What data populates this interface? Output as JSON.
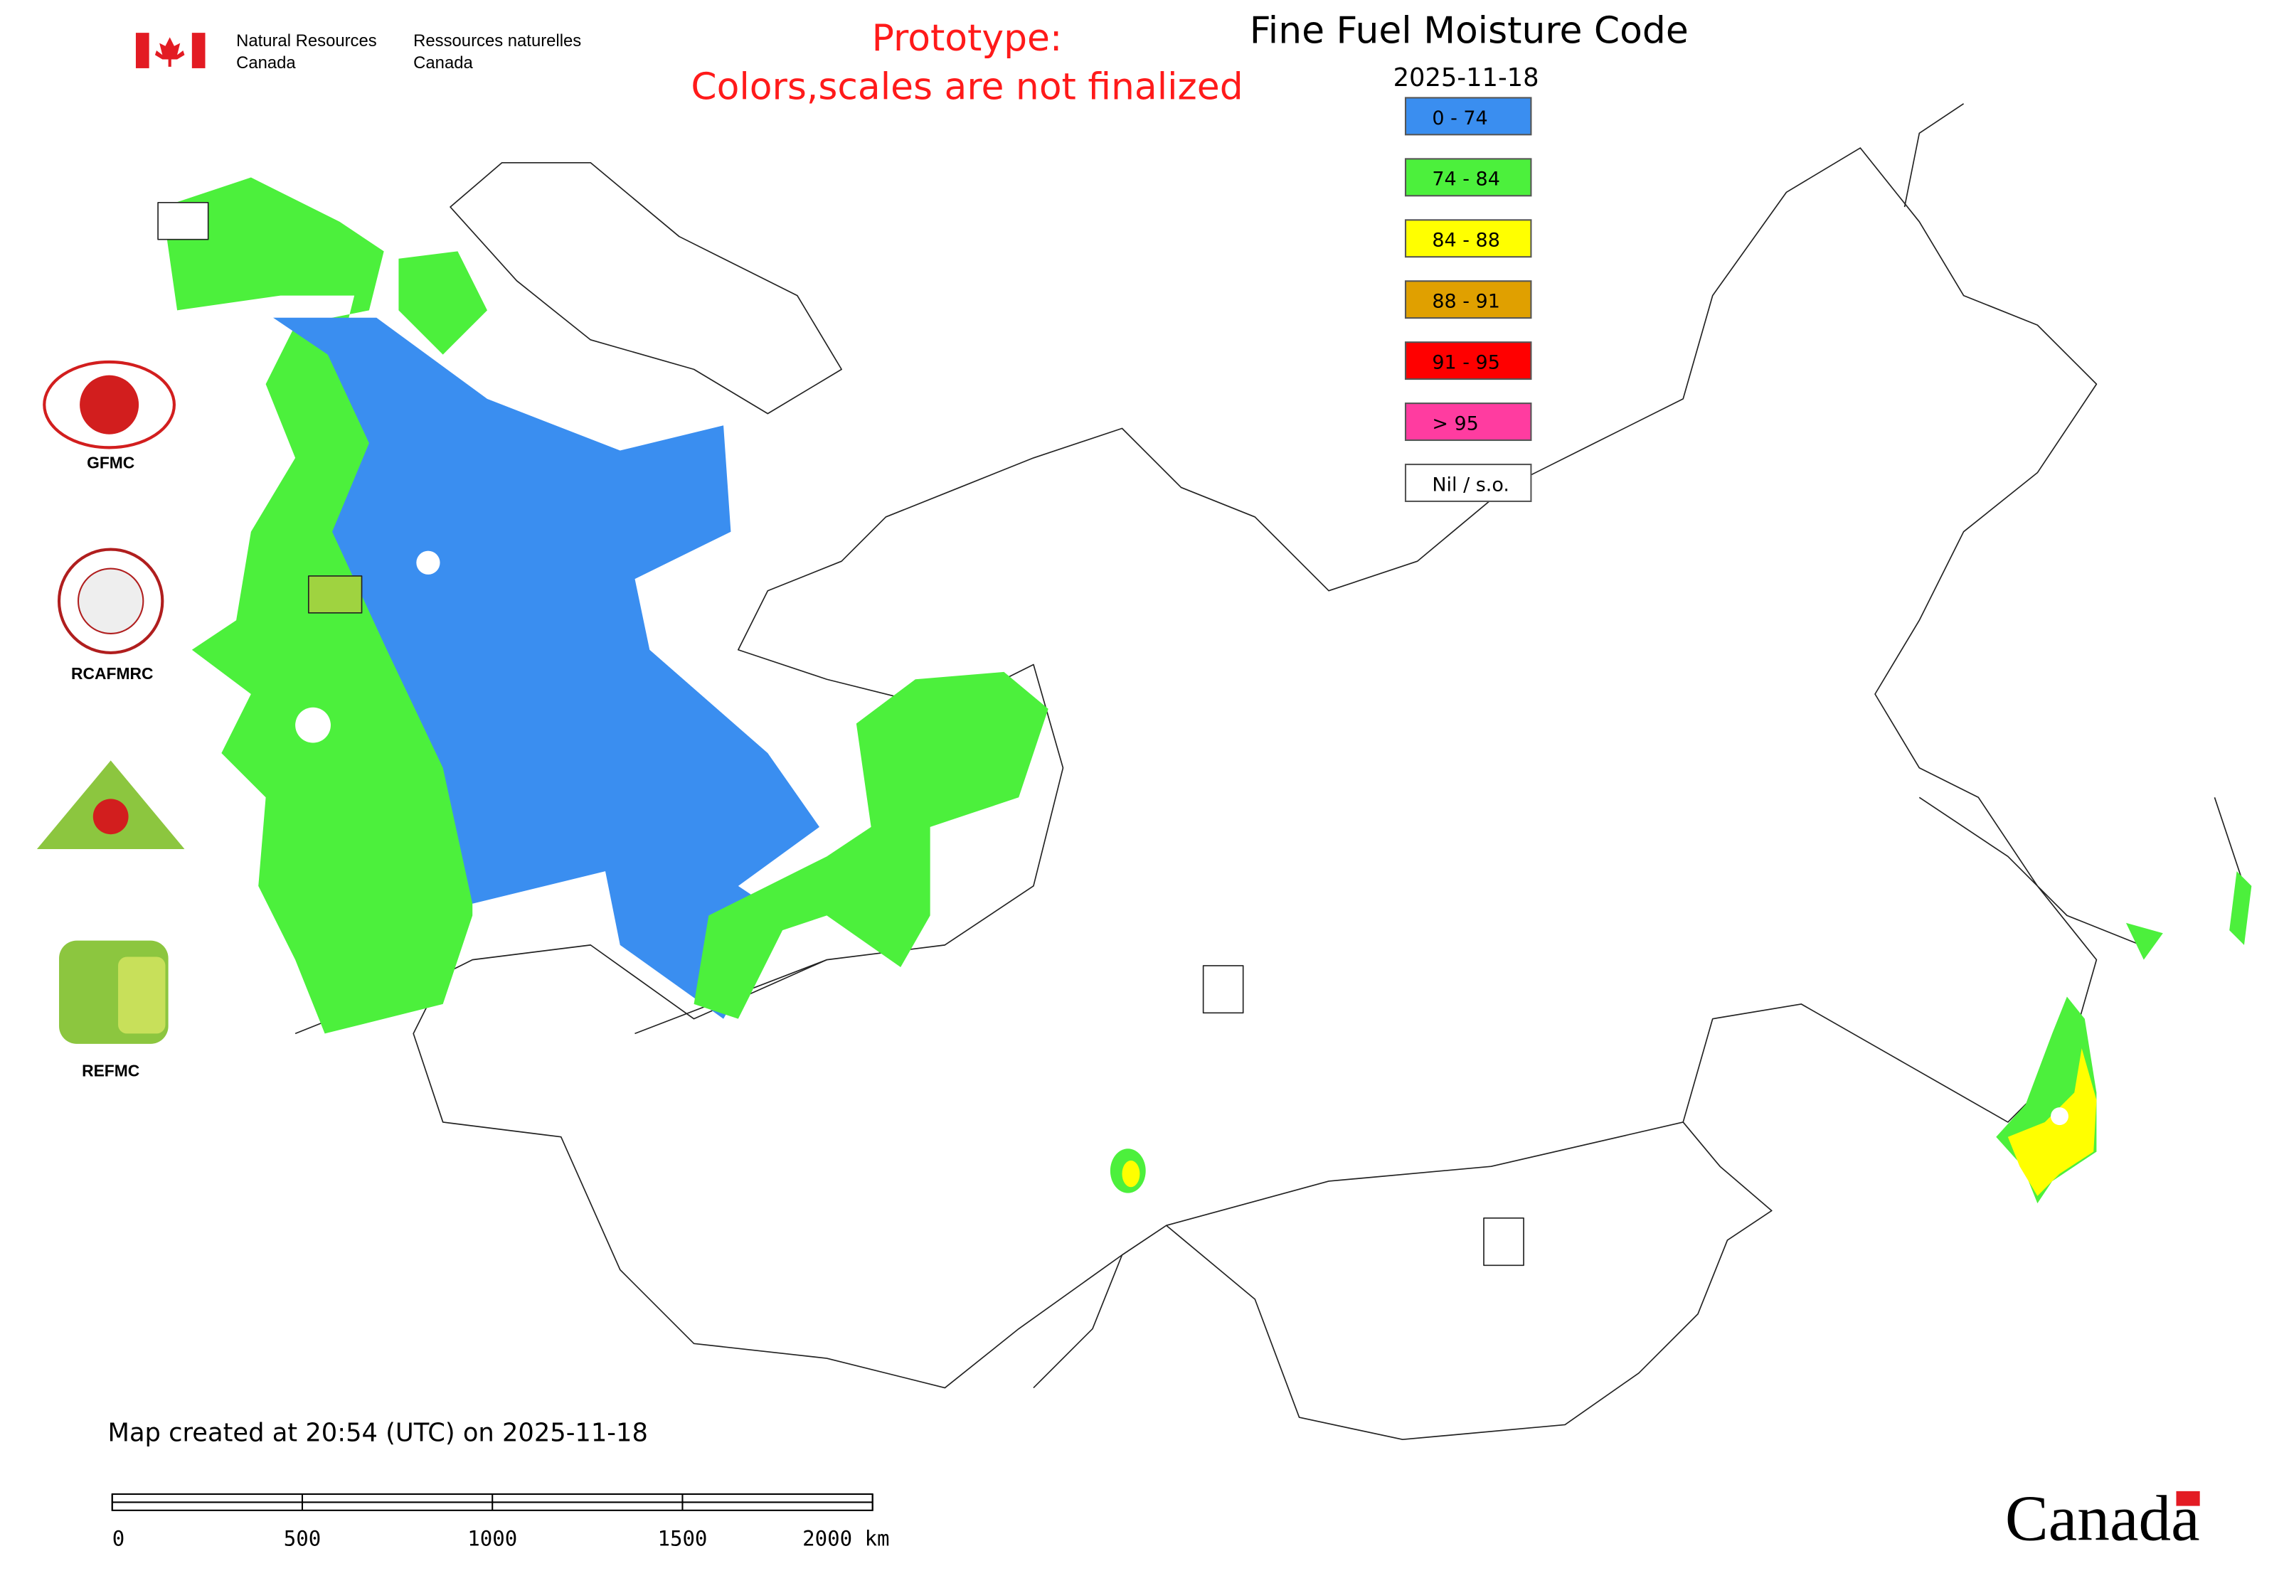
{
  "header": {
    "agency_en": [
      "Natural Resources",
      "Canada"
    ],
    "agency_fr": [
      "Ressources naturelles",
      "Canada"
    ],
    "notice": [
      "Prototype:",
      "Colors,scales are not finalized"
    ],
    "title": "Fine Fuel Moisture Code",
    "date": "2025-11-18"
  },
  "legend": [
    {
      "label": "0 - 74",
      "color": "#3a8ef0"
    },
    {
      "label": "74 - 84",
      "color": "#4cf03c"
    },
    {
      "label": "84 - 88",
      "color": "#ffff00"
    },
    {
      "label": "88 - 91",
      "color": "#e0a000"
    },
    {
      "label": "91 - 95",
      "color": "#ff0000"
    },
    {
      "label": "> 95",
      "color": "#ff3ca0"
    },
    {
      "label": "Nil / s.o.",
      "color": "#ffffff"
    }
  ],
  "logos": [
    "GFMC",
    "RCAFMRC",
    "REFMC"
  ],
  "footer": {
    "created": "Map created at 20:54 (UTC) on 2025-11-18",
    "scale_labels": [
      "0",
      "500",
      "1000",
      "1500",
      "2000 km"
    ],
    "wordmark": "Canada"
  }
}
